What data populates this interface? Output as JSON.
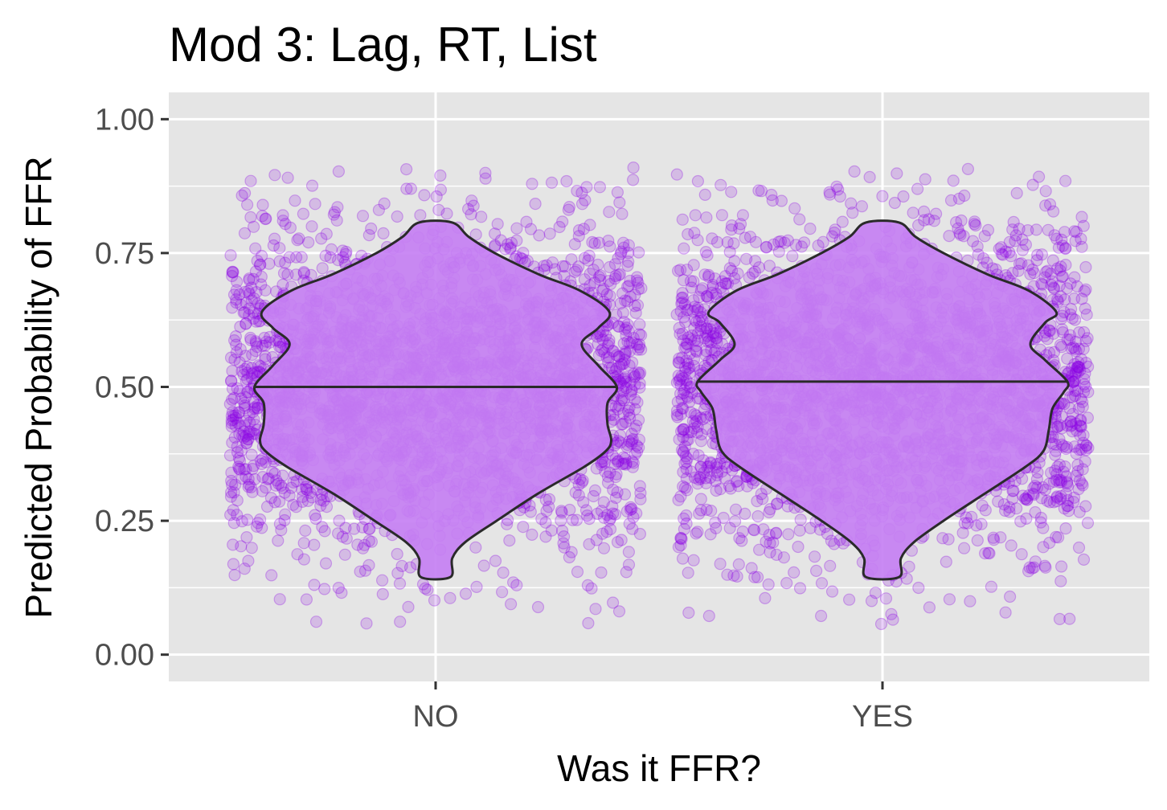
{
  "chart_data": {
    "type": "violin",
    "title": "Mod 3: Lag, RT, List",
    "xlabel": "Was it FFR?",
    "ylabel": "Predicted Probability of FFR",
    "categories": [
      "NO",
      "YES"
    ],
    "ylim": [
      -0.05,
      1.05
    ],
    "yticks": [
      0.0,
      0.25,
      0.5,
      0.75,
      1.0
    ],
    "ytick_labels": [
      "0.00",
      "0.25",
      "0.50",
      "0.75",
      "1.00"
    ],
    "grid": true,
    "colors": {
      "panel": "#e5e5e5",
      "grid": "#ffffff",
      "points": "#8a00e6",
      "violin_fill": "#c580f3",
      "violin_line": "#2a2a2a"
    },
    "violins": [
      {
        "category": "NO",
        "median": 0.5,
        "min": 0.145,
        "max": 0.807,
        "profile": [
          [
            0.145,
            0.08
          ],
          [
            0.18,
            0.09
          ],
          [
            0.21,
            0.16
          ],
          [
            0.25,
            0.33
          ],
          [
            0.3,
            0.55
          ],
          [
            0.35,
            0.8
          ],
          [
            0.38,
            0.92
          ],
          [
            0.4,
            0.95
          ],
          [
            0.43,
            0.93
          ],
          [
            0.47,
            0.93
          ],
          [
            0.5,
            0.98
          ],
          [
            0.54,
            0.88
          ],
          [
            0.58,
            0.79
          ],
          [
            0.61,
            0.88
          ],
          [
            0.64,
            0.94
          ],
          [
            0.68,
            0.78
          ],
          [
            0.71,
            0.56
          ],
          [
            0.75,
            0.32
          ],
          [
            0.78,
            0.18
          ],
          [
            0.807,
            0.09
          ]
        ]
      },
      {
        "category": "YES",
        "median": 0.51,
        "min": 0.145,
        "max": 0.807,
        "profile": [
          [
            0.145,
            0.09
          ],
          [
            0.18,
            0.1
          ],
          [
            0.21,
            0.17
          ],
          [
            0.25,
            0.33
          ],
          [
            0.3,
            0.55
          ],
          [
            0.35,
            0.77
          ],
          [
            0.38,
            0.87
          ],
          [
            0.42,
            0.9
          ],
          [
            0.46,
            0.92
          ],
          [
            0.49,
            0.98
          ],
          [
            0.51,
            1.0
          ],
          [
            0.55,
            0.88
          ],
          [
            0.58,
            0.8
          ],
          [
            0.62,
            0.88
          ],
          [
            0.64,
            0.94
          ],
          [
            0.68,
            0.79
          ],
          [
            0.71,
            0.57
          ],
          [
            0.75,
            0.33
          ],
          [
            0.78,
            0.18
          ],
          [
            0.807,
            0.09
          ]
        ]
      }
    ],
    "jitter_points": {
      "description_range": [
        0.04,
        0.91
      ]
    }
  }
}
